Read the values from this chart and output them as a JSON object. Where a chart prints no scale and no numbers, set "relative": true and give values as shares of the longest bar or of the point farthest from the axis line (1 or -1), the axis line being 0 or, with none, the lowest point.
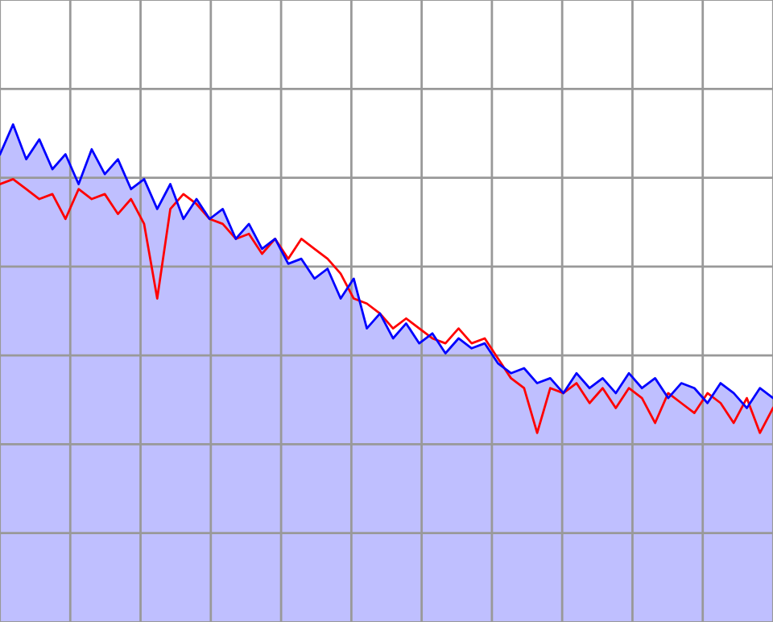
{
  "chart_data": {
    "type": "line",
    "relative": true,
    "grid": true,
    "legend": false,
    "categories": [
      null,
      null,
      null,
      null,
      null,
      null,
      null,
      null,
      null,
      null,
      null,
      null,
      null,
      null,
      null,
      null,
      null,
      null,
      null,
      null,
      null,
      null,
      null,
      null,
      null,
      null,
      null,
      null,
      null,
      null,
      null,
      null,
      null,
      null,
      null,
      null,
      null,
      null,
      null,
      null,
      null,
      null,
      null,
      null,
      null,
      null,
      null,
      null,
      null,
      null,
      null,
      null,
      null,
      null,
      null,
      null,
      null,
      null,
      null,
      null
    ],
    "series": [
      {
        "color": "#ff0000",
        "values": [
          0.88,
          0.89,
          0.87,
          0.85,
          0.86,
          0.81,
          0.87,
          0.85,
          0.86,
          0.82,
          0.85,
          0.8,
          0.65,
          0.83,
          0.86,
          0.84,
          0.81,
          0.8,
          0.77,
          0.78,
          0.74,
          0.77,
          0.73,
          0.77,
          0.75,
          0.73,
          0.7,
          0.65,
          0.64,
          0.62,
          0.59,
          0.61,
          0.59,
          0.57,
          0.56,
          0.59,
          0.56,
          0.57,
          0.53,
          0.49,
          0.47,
          0.38,
          0.47,
          0.46,
          0.48,
          0.44,
          0.47,
          0.43,
          0.47,
          0.45,
          0.4,
          0.46,
          0.44,
          0.42,
          0.46,
          0.44,
          0.4,
          0.45,
          0.38,
          0.43
        ]
      },
      {
        "type": "area",
        "color": "#0000ff",
        "values": [
          0.94,
          1.0,
          0.93,
          0.97,
          0.91,
          0.94,
          0.88,
          0.95,
          0.9,
          0.93,
          0.87,
          0.89,
          0.83,
          0.88,
          0.81,
          0.85,
          0.81,
          0.83,
          0.77,
          0.8,
          0.75,
          0.77,
          0.72,
          0.73,
          0.69,
          0.71,
          0.65,
          0.69,
          0.59,
          0.62,
          0.57,
          0.6,
          0.56,
          0.58,
          0.54,
          0.57,
          0.55,
          0.56,
          0.52,
          0.5,
          0.51,
          0.48,
          0.49,
          0.46,
          0.5,
          0.47,
          0.49,
          0.46,
          0.5,
          0.47,
          0.49,
          0.45,
          0.48,
          0.47,
          0.44,
          0.48,
          0.46,
          0.43,
          0.47,
          0.45
        ]
      }
    ]
  }
}
